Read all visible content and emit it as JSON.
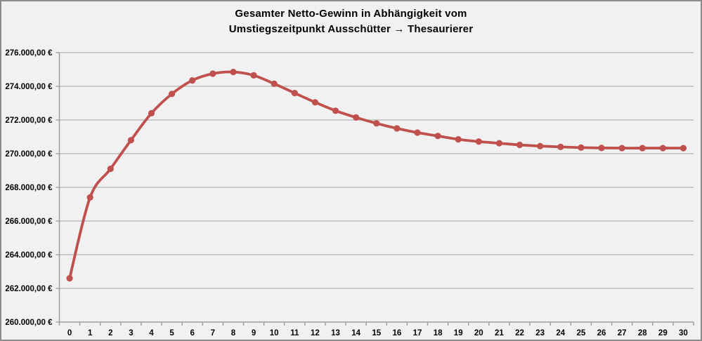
{
  "window": {
    "background": "#f1f1f1",
    "border_color": "#8c8c8c"
  },
  "chart_data": {
    "type": "line",
    "title": "Gesamter Netto-Gewinn in Abhängigkeit vom Umstiegszeitpunkt Ausschütter → Thesaurierer",
    "title_lines": [
      "Gesamter Netto-Gewinn in Abhängigkeit vom",
      "Umstiegszeitpunkt Ausschütter → Thesaurierer"
    ],
    "xlabel": "",
    "ylabel": "",
    "categories": [
      "0",
      "1",
      "2",
      "3",
      "4",
      "5",
      "6",
      "7",
      "8",
      "9",
      "10",
      "11",
      "12",
      "13",
      "14",
      "15",
      "16",
      "17",
      "18",
      "19",
      "20",
      "21",
      "22",
      "23",
      "24",
      "25",
      "26",
      "27",
      "28",
      "29",
      "30"
    ],
    "series": [
      {
        "name": "Gesamter Netto-Gewinn",
        "color": "#c0504d",
        "marker": "circle",
        "smoothed": true,
        "values": [
          262600,
          267400,
          269100,
          270800,
          272400,
          273550,
          274350,
          274750,
          274850,
          274650,
          274150,
          273600,
          273050,
          272550,
          272150,
          271800,
          271500,
          271250,
          271050,
          270850,
          270720,
          270620,
          270520,
          270450,
          270400,
          270360,
          270340,
          270330,
          270330,
          270330,
          270330
        ]
      }
    ],
    "ylim": [
      260000,
      276000
    ],
    "ytick_step": 2000,
    "yticks": [
      {
        "value": 260000,
        "label": "260.000,00 €"
      },
      {
        "value": 262000,
        "label": "262.000,00 €"
      },
      {
        "value": 264000,
        "label": "264.000,00 €"
      },
      {
        "value": 266000,
        "label": "266.000,00 €"
      },
      {
        "value": 268000,
        "label": "268.000,00 €"
      },
      {
        "value": 270000,
        "label": "270.000,00 €"
      },
      {
        "value": 272000,
        "label": "272.000,00 €"
      },
      {
        "value": 274000,
        "label": "274.000,00 €"
      },
      {
        "value": 276000,
        "label": "276.000,00 €"
      }
    ],
    "grid": true,
    "legend_position": "none"
  },
  "styles": {
    "series_color": "#c0504d",
    "gridline_color": "#bdbdbd",
    "axis_color": "#9e9e9e",
    "tick_color": "#9e9e9e",
    "label_color": "#000000"
  }
}
